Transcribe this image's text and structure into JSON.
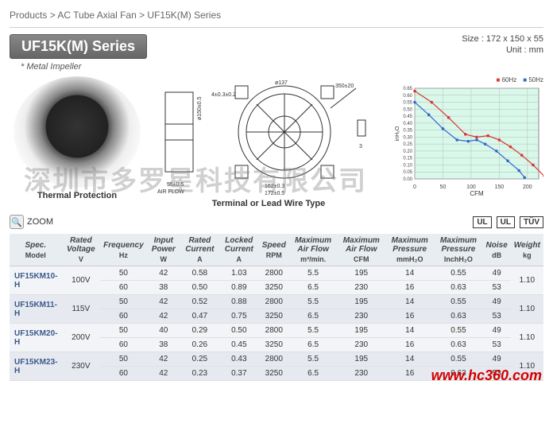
{
  "breadcrumb": "Products > AC Tube Axial Fan > UF15K(M) Series",
  "header": {
    "series": "UF15K(M) Series",
    "size_line": "Size : 172 x 150 x 55",
    "unit_line": "Unit : mm",
    "note": "* Metal Impeller"
  },
  "figures": {
    "photo_caption": "Thermal Protection",
    "drawing_caption": "Terminal or Lead Wire Type",
    "drawing": {
      "width_label": "55±0.5",
      "height_label": "ø150±0.5",
      "depth_label": "4±0.3±0.2",
      "airflow_label": "AIR FLOW",
      "diameter_label": "ø137",
      "outer_w_label": "162±0.3",
      "total_w_label": "172±0.5",
      "lead_label": "350±20",
      "stub_label": "3"
    },
    "chart": {
      "type": "line",
      "title": "",
      "xlabel": "CFM",
      "ylabel": "inH₂O",
      "xlim": [
        0,
        220
      ],
      "ylim": [
        0,
        0.65
      ],
      "xticks": [
        0,
        50,
        100,
        150,
        200
      ],
      "yticks": [
        0,
        0.05,
        0.1,
        0.15,
        0.2,
        0.25,
        0.3,
        0.35,
        0.4,
        0.45,
        0.5,
        0.55,
        0.6,
        0.65
      ],
      "background_color": "#d8f8ea",
      "grid_color": "#bbb",
      "series": [
        {
          "name": "60Hz",
          "color": "#d33",
          "marker": "diamond",
          "x": [
            0,
            30,
            60,
            90,
            110,
            130,
            150,
            170,
            190,
            210,
            230
          ],
          "y": [
            0.63,
            0.55,
            0.44,
            0.32,
            0.3,
            0.31,
            0.28,
            0.23,
            0.17,
            0.1,
            0.02
          ]
        },
        {
          "name": "50Hz",
          "color": "#36c",
          "marker": "triangle",
          "x": [
            0,
            25,
            50,
            75,
            95,
            110,
            125,
            145,
            165,
            185,
            195
          ],
          "y": [
            0.55,
            0.46,
            0.36,
            0.28,
            0.27,
            0.28,
            0.25,
            0.2,
            0.13,
            0.06,
            0.01
          ]
        }
      ],
      "legend": {
        "l60": "60Hz",
        "l50": "50Hz"
      }
    }
  },
  "zoom": {
    "label": "ZOOM"
  },
  "certs": [
    "UL",
    "UL",
    "TÜV"
  ],
  "watermark": "深圳市多罗星科技有限公司",
  "url": "www.hc360.com",
  "table": {
    "columns": [
      {
        "title": "Spec.",
        "sub": "Model"
      },
      {
        "title": "Rated Voltage",
        "sub": "V"
      },
      {
        "title": "Frequency",
        "sub": "Hz"
      },
      {
        "title": "Input Power",
        "sub": "W"
      },
      {
        "title": "Rated Current",
        "sub": "A"
      },
      {
        "title": "Locked Current",
        "sub": "A"
      },
      {
        "title": "Speed",
        "sub": "RPM"
      },
      {
        "title": "Maximum Air Flow",
        "sub": "m³/min."
      },
      {
        "title": "Maximum Air Flow",
        "sub": "CFM"
      },
      {
        "title": "Maximum Pressure",
        "sub": "mmH₂O"
      },
      {
        "title": "Maximum Pressure",
        "sub": "InchH₂O"
      },
      {
        "title": "Noise",
        "sub": "dB"
      },
      {
        "title": "Weight",
        "sub": "kg"
      }
    ],
    "groups": [
      {
        "model": "UF15KM10-H",
        "voltage": "100V",
        "weight": "1.10",
        "rows": [
          {
            "hz": "50",
            "w": "42",
            "ra": "0.58",
            "la": "1.03",
            "rpm": "2800",
            "m3": "5.5",
            "cfm": "195",
            "mmh": "14",
            "inh": "0.55",
            "db": "49"
          },
          {
            "hz": "60",
            "w": "38",
            "ra": "0.50",
            "la": "0.89",
            "rpm": "3250",
            "m3": "6.5",
            "cfm": "230",
            "mmh": "16",
            "inh": "0.63",
            "db": "53"
          }
        ]
      },
      {
        "model": "UF15KM11-H",
        "voltage": "115V",
        "weight": "1.10",
        "rows": [
          {
            "hz": "50",
            "w": "42",
            "ra": "0.52",
            "la": "0.88",
            "rpm": "2800",
            "m3": "5.5",
            "cfm": "195",
            "mmh": "14",
            "inh": "0.55",
            "db": "49"
          },
          {
            "hz": "60",
            "w": "42",
            "ra": "0.47",
            "la": "0.75",
            "rpm": "3250",
            "m3": "6.5",
            "cfm": "230",
            "mmh": "16",
            "inh": "0.63",
            "db": "53"
          }
        ]
      },
      {
        "model": "UF15KM20-H",
        "voltage": "200V",
        "weight": "1.10",
        "rows": [
          {
            "hz": "50",
            "w": "40",
            "ra": "0.29",
            "la": "0.50",
            "rpm": "2800",
            "m3": "5.5",
            "cfm": "195",
            "mmh": "14",
            "inh": "0.55",
            "db": "49"
          },
          {
            "hz": "60",
            "w": "38",
            "ra": "0.26",
            "la": "0.45",
            "rpm": "3250",
            "m3": "6.5",
            "cfm": "230",
            "mmh": "16",
            "inh": "0.63",
            "db": "53"
          }
        ]
      },
      {
        "model": "UF15KM23-H",
        "voltage": "230V",
        "weight": "1.10",
        "rows": [
          {
            "hz": "50",
            "w": "42",
            "ra": "0.25",
            "la": "0.43",
            "rpm": "2800",
            "m3": "5.5",
            "cfm": "195",
            "mmh": "14",
            "inh": "0.55",
            "db": "49"
          },
          {
            "hz": "60",
            "w": "42",
            "ra": "0.23",
            "la": "0.37",
            "rpm": "3250",
            "m3": "6.5",
            "cfm": "230",
            "mmh": "16",
            "inh": "0.63",
            "db": "53"
          }
        ]
      }
    ]
  }
}
